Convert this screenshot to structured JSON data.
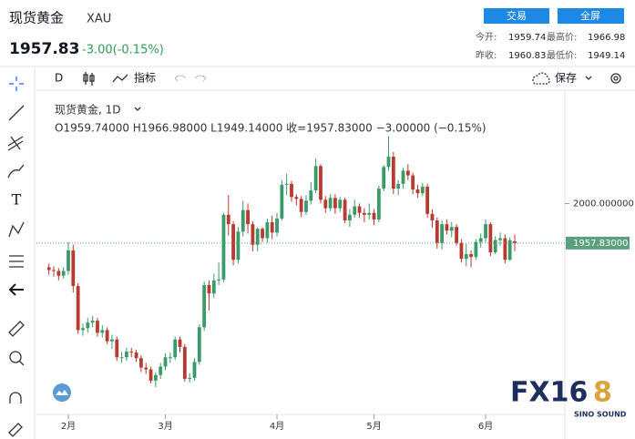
{
  "header": {
    "name": "现货黄金",
    "symbol": "XAU",
    "price": "1957.83",
    "change": "-3.00(-0.15%)",
    "buttons": [
      "交易",
      "全屏"
    ],
    "stats": [
      {
        "label": "今开:",
        "value": "1959.74"
      },
      {
        "label": "最高价:",
        "value": "1966.98"
      },
      {
        "label": "昨收:",
        "value": "1960.83"
      },
      {
        "label": "最低价:",
        "value": "1949.14"
      }
    ]
  },
  "toolbar": {
    "interval": "D",
    "indicators": "指标",
    "save": "保存"
  },
  "watermark": {
    "brand_main": "FX16",
    "brand_accent": "8",
    "sub": "SINO SOUND"
  },
  "chart_data": {
    "type": "candlestick",
    "title": "现货黄金, 1D",
    "legend_text": "O1959.74000  H1966.98000  L1949.14000  收=1957.83000  −3.00000 (−0.15%)",
    "categories": [
      null,
      null,
      null,
      null,
      "2月",
      null,
      null,
      null,
      null,
      null,
      null,
      null,
      null,
      null,
      null,
      null,
      null,
      null,
      null,
      null,
      null,
      null,
      null,
      null,
      "3月",
      null,
      null,
      null,
      null,
      null,
      null,
      null,
      null,
      null,
      null,
      null,
      null,
      null,
      null,
      null,
      null,
      null,
      null,
      null,
      null,
      null,
      null,
      "4月",
      null,
      null,
      null,
      null,
      null,
      null,
      null,
      null,
      null,
      null,
      null,
      null,
      null,
      null,
      null,
      null,
      null,
      null,
      null,
      "5月",
      null,
      null,
      null,
      null,
      null,
      null,
      null,
      null,
      null,
      null,
      null,
      null,
      null,
      null,
      null,
      null,
      null,
      null,
      null,
      null,
      null,
      null,
      "6月",
      null,
      null,
      null,
      null,
      null,
      null
    ],
    "open": [
      1932,
      1929,
      1928,
      1923,
      1928,
      1950,
      1912,
      1865,
      1867,
      1873,
      1875,
      1862,
      1865,
      1853,
      1855,
      1836,
      1836,
      1842,
      1841,
      1835,
      1825,
      1823,
      1811,
      1817,
      1826,
      1836,
      1836,
      1855,
      1847,
      1813,
      1814,
      1831,
      1868,
      1913,
      1904,
      1918,
      1919,
      1988,
      1978,
      1940,
      1970,
      1993,
      1978,
      1956,
      1973,
      1963,
      1980,
      1969,
      1984,
      2020,
      2021,
      2007,
      2005,
      1991,
      2003,
      2014,
      2040,
      2004,
      1995,
      2006,
      1995,
      2004,
      1982,
      1988,
      1997,
      1990,
      1988,
      1990,
      1983,
      2016,
      2039,
      2050,
      2016,
      2021,
      2035,
      2030,
      2015,
      2011,
      2018,
      1989,
      1982,
      1958,
      1978,
      1971,
      1975,
      1958,
      1941,
      1946,
      1943,
      1959,
      1963,
      1978,
      1948,
      1961,
      1963,
      1940,
      1959.74
    ],
    "high": [
      1936,
      1933,
      1931,
      1932,
      1959,
      1956,
      1915,
      1872,
      1878,
      1880,
      1878,
      1870,
      1868,
      1860,
      1858,
      1842,
      1846,
      1846,
      1844,
      1838,
      1830,
      1826,
      1820,
      1830,
      1840,
      1841,
      1858,
      1858,
      1850,
      1819,
      1835,
      1871,
      1917,
      1918,
      1925,
      1937,
      1990,
      2009,
      1981,
      1975,
      2003,
      2000,
      1981,
      1975,
      1975,
      1984,
      1987,
      1990,
      2025,
      2032,
      2024,
      2010,
      2008,
      2009,
      2023,
      2048,
      2042,
      2008,
      2010,
      2010,
      2007,
      2006,
      1994,
      2004,
      2000,
      1995,
      2000,
      1994,
      2019,
      2041,
      2072,
      2055,
      2025,
      2038,
      2042,
      2033,
      2020,
      2022,
      2021,
      1994,
      1985,
      1982,
      1983,
      1980,
      1978,
      1962,
      1957,
      1950,
      1962,
      1968,
      1983,
      1980,
      1965,
      1969,
      1967,
      1964,
      1966.98
    ],
    "low": [
      1924,
      1922,
      1918,
      1920,
      1924,
      1905,
      1861,
      1859,
      1862,
      1868,
      1858,
      1857,
      1850,
      1845,
      1832,
      1830,
      1832,
      1836,
      1831,
      1820,
      1818,
      1808,
      1804,
      1813,
      1822,
      1830,
      1833,
      1841,
      1810,
      1809,
      1811,
      1828,
      1864,
      1886,
      1899,
      1913,
      1916,
      1966,
      1934,
      1936,
      1965,
      1968,
      1949,
      1949,
      1959,
      1958,
      1962,
      1965,
      1982,
      2009,
      2002,
      1998,
      1986,
      1988,
      1999,
      2011,
      2000,
      1990,
      1992,
      1989,
      1991,
      1979,
      1975,
      1985,
      1985,
      1980,
      1983,
      1977,
      1980,
      2013,
      2035,
      2010,
      2009,
      2016,
      2025,
      2010,
      2006,
      2008,
      1985,
      1974,
      1952,
      1951,
      1967,
      1964,
      1955,
      1937,
      1933,
      1932,
      1940,
      1953,
      1959,
      1944,
      1946,
      1955,
      1936,
      1939,
      1949.14
    ],
    "close": [
      1929,
      1928,
      1923,
      1928,
      1950,
      1912,
      1865,
      1867,
      1873,
      1875,
      1862,
      1865,
      1853,
      1855,
      1836,
      1836,
      1842,
      1841,
      1835,
      1825,
      1823,
      1811,
      1817,
      1826,
      1836,
      1836,
      1855,
      1847,
      1813,
      1814,
      1831,
      1868,
      1913,
      1904,
      1918,
      1919,
      1988,
      1978,
      1940,
      1970,
      1993,
      1978,
      1956,
      1973,
      1963,
      1980,
      1969,
      1984,
      2020,
      2021,
      2007,
      2005,
      1991,
      2003,
      2014,
      2040,
      2004,
      1995,
      2006,
      1995,
      2004,
      1982,
      1988,
      1997,
      1990,
      1988,
      1990,
      1983,
      2016,
      2039,
      2050,
      2016,
      2021,
      2035,
      2030,
      2015,
      2011,
      2018,
      1989,
      1982,
      1958,
      1978,
      1971,
      1975,
      1958,
      1941,
      1946,
      1943,
      1959,
      1963,
      1978,
      1948,
      1961,
      1963,
      1940,
      1960.83,
      1957.83
    ],
    "ylim": [
      1775,
      2120
    ],
    "yticks": [
      {
        "value": 2000,
        "label": "2000.000000"
      }
    ],
    "last_price": {
      "value": 1957.83,
      "label": "1957.83000"
    },
    "up_color": "#3a9a6a",
    "down_color": "#b93a30",
    "price_tag_color": "#5b9f7e"
  }
}
